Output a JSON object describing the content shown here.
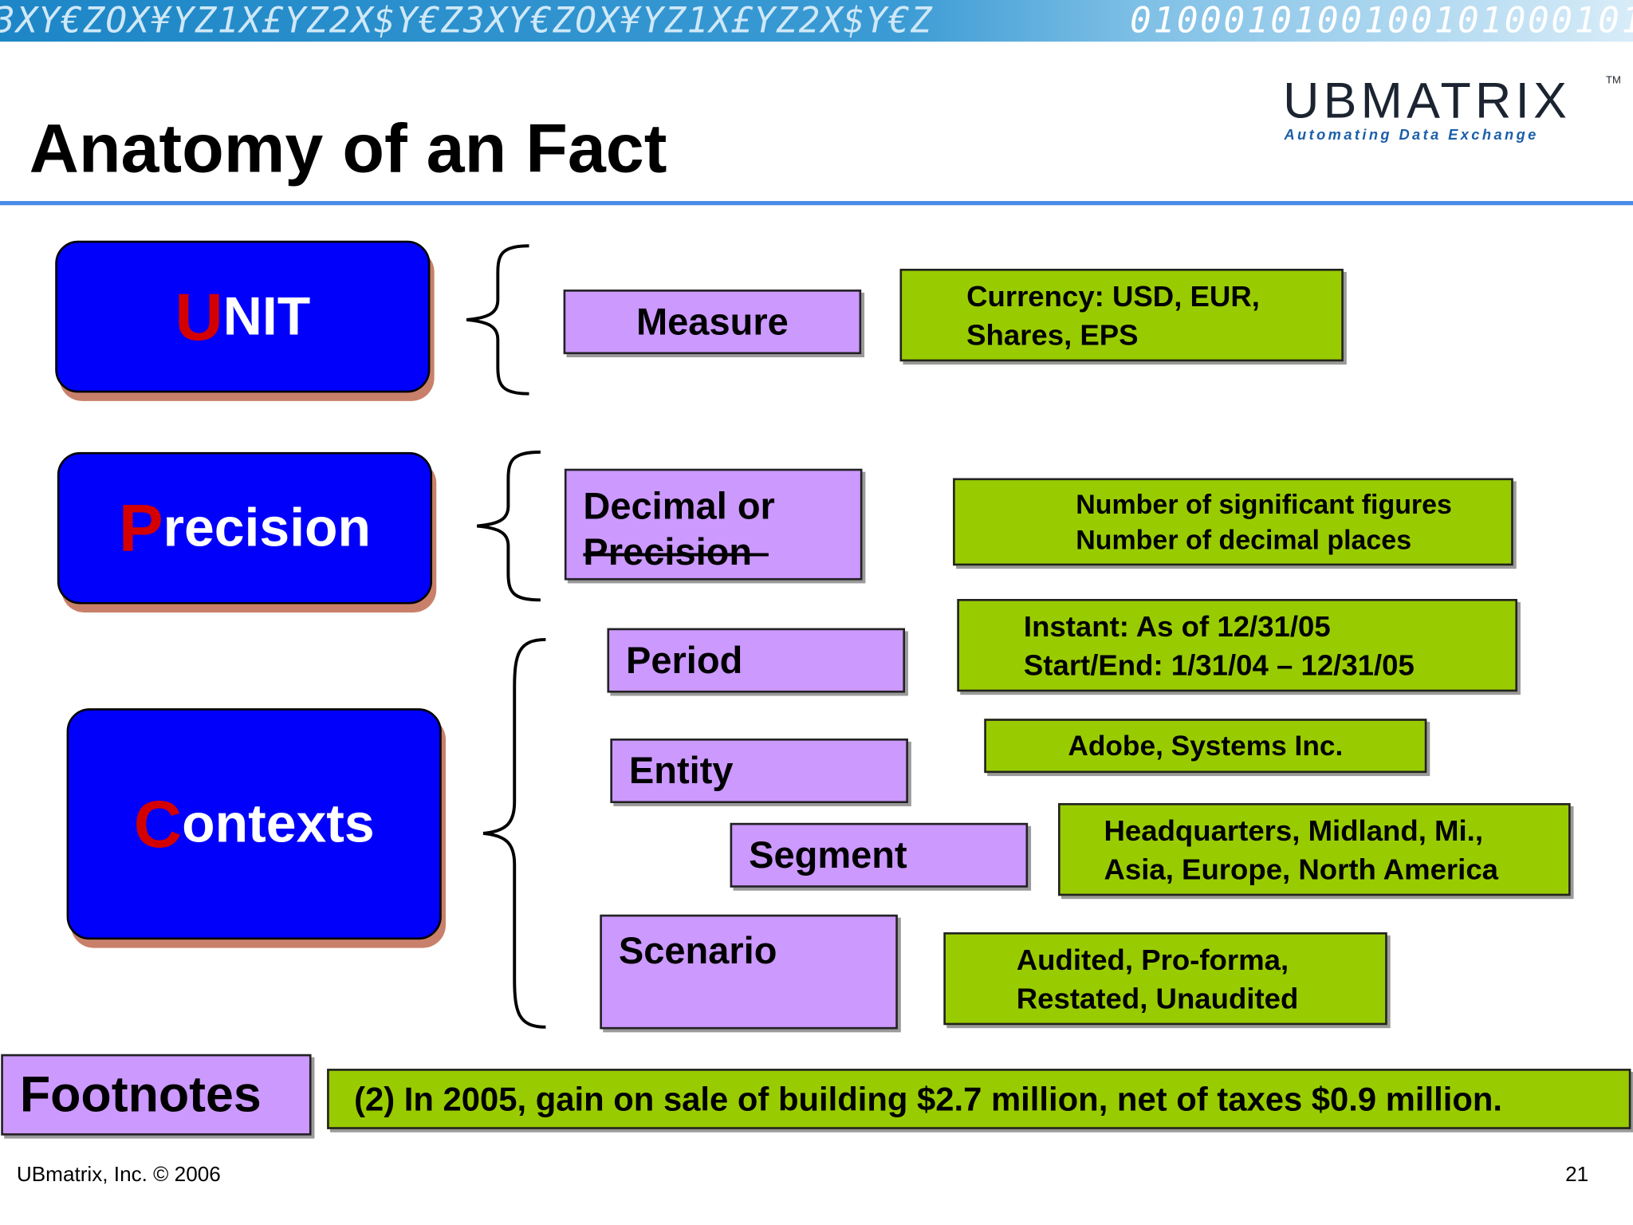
{
  "banner": {
    "text": "ЗXY€ZOX¥YZ1X£YZ2X$Y€Z3XY€ZOX¥YZ1X£YZ2X$Y€Z",
    "binary": "0100010100100101000101"
  },
  "title": "Anatomy of an Fact",
  "logo": {
    "name": "UBMATRIX",
    "tm": "TM",
    "tagline": "Automating Data Exchange"
  },
  "categories": [
    {
      "first": "U",
      "rest": "NIT"
    },
    {
      "first": "P",
      "rest": "recision"
    },
    {
      "first": "C",
      "rest": "ontexts"
    }
  ],
  "properties": {
    "measure": "Measure",
    "decimal_line1": "Decimal or",
    "decimal_line2_struck": "Precision",
    "period": "Period",
    "entity": "Entity",
    "segment": "Segment",
    "scenario": "Scenario",
    "footnotes": "Footnotes"
  },
  "examples": {
    "unit": [
      "Currency: USD, EUR,",
      "Shares, EPS"
    ],
    "precision": [
      "Number of significant figures",
      "Number of decimal places"
    ],
    "period": [
      "Instant: As of 12/31/05",
      "Start/End: 1/31/04 – 12/31/05"
    ],
    "entity": "Adobe, Systems Inc.",
    "segment": [
      "Headquarters, Midland, Mi.,",
      "Asia, Europe, North America"
    ],
    "scenario": [
      "Audited, Pro-forma,",
      "Restated, Unaudited"
    ],
    "footnote": "(2) In 2005, gain on sale of building $2.7 million, net of taxes $0.9 million."
  },
  "footer": {
    "left": "UBmatrix, Inc. © 2006",
    "page": "21"
  },
  "colors": {
    "category_fill": "#0000fb",
    "initial_letter": "#d40000",
    "property_fill": "#cc99ff",
    "example_fill": "#99cc00",
    "rule": "#4a8ae8"
  }
}
